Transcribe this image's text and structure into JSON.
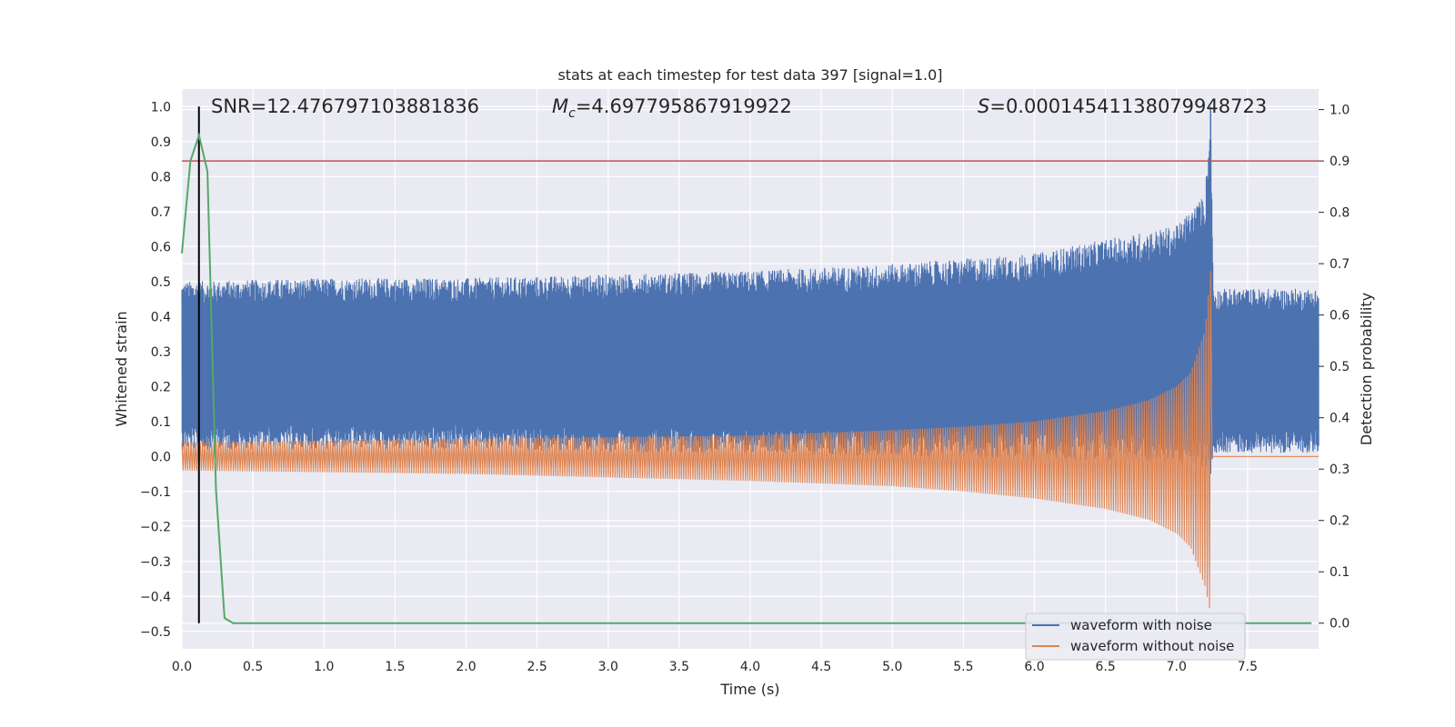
{
  "chart_data": {
    "type": "line",
    "title": "stats at each timestep for test data 397 [signal=1.0]",
    "xlabel": "Time (s)",
    "ylabel_left": "Whitened strain",
    "ylabel_right": "Detection probability",
    "xlim": [
      0,
      8
    ],
    "ylim_left": [
      -0.55,
      1.05
    ],
    "ylim_right": [
      -0.05,
      1.04
    ],
    "x_ticks": [
      "0.0",
      "0.5",
      "1.0",
      "1.5",
      "2.0",
      "2.5",
      "3.0",
      "3.5",
      "4.0",
      "4.5",
      "5.0",
      "5.5",
      "6.0",
      "6.5",
      "7.0",
      "7.5"
    ],
    "y_ticks_left": [
      "1.0",
      "0.9",
      "0.8",
      "0.7",
      "0.6",
      "0.5",
      "0.4",
      "0.3",
      "0.2",
      "0.1",
      "0.0",
      "−0.1",
      "−0.2",
      "−0.3",
      "−0.4",
      "−0.5"
    ],
    "y_ticks_right": [
      "1.0",
      "0.9",
      "0.8",
      "0.7",
      "0.6",
      "0.5",
      "0.4",
      "0.3",
      "0.2",
      "0.1",
      "0.0"
    ],
    "grid": true,
    "legend_position": "lower-right",
    "annotations": {
      "snr_text": "SNR=12.476797103881836",
      "mc_symbol": "M",
      "mc_sub": "c",
      "mc_value": "=4.697795867919922",
      "s_symbol": "S",
      "s_value": "=0.00014541138079948723"
    },
    "threshold": 0.9,
    "marker_time": 0.12,
    "merger_time": 7.24,
    "series": [
      {
        "name": "waveform with noise",
        "color": "#4c72b0",
        "envelope": {
          "time": [
            0.0,
            1.0,
            2.0,
            3.0,
            4.0,
            5.0,
            6.0,
            6.5,
            7.0,
            7.2,
            7.24,
            7.26,
            8.0
          ],
          "upper": [
            0.5,
            0.51,
            0.51,
            0.52,
            0.53,
            0.55,
            0.58,
            0.62,
            0.66,
            0.75,
            1.0,
            0.48,
            0.48
          ],
          "lower": [
            0.02,
            0.02,
            0.02,
            0.01,
            0.01,
            0.0,
            -0.01,
            -0.01,
            -0.02,
            -0.04,
            -0.05,
            0.01,
            0.01
          ]
        }
      },
      {
        "name": "waveform without noise",
        "color": "#dd8452",
        "envelope": {
          "time": [
            0.0,
            1.0,
            2.0,
            3.0,
            4.0,
            5.0,
            5.5,
            6.0,
            6.5,
            6.8,
            7.0,
            7.1,
            7.2,
            7.24,
            7.25,
            8.0
          ],
          "upper": [
            0.04,
            0.045,
            0.05,
            0.055,
            0.06,
            0.075,
            0.085,
            0.1,
            0.13,
            0.16,
            0.2,
            0.24,
            0.36,
            0.53,
            0.0,
            0.0
          ],
          "lower": [
            -0.04,
            -0.045,
            -0.05,
            -0.06,
            -0.07,
            -0.085,
            -0.1,
            -0.12,
            -0.15,
            -0.18,
            -0.22,
            -0.26,
            -0.37,
            -0.45,
            0.0,
            0.0
          ]
        }
      },
      {
        "name": "detection probability",
        "color": "#55a868",
        "axis": "right",
        "x": [
          0.0,
          0.06,
          0.12,
          0.18,
          0.24,
          0.3,
          0.36,
          0.5,
          1.0,
          2.0,
          3.0,
          4.0,
          5.0,
          6.0,
          7.0,
          7.5,
          7.95
        ],
        "y": [
          0.72,
          0.9,
          0.95,
          0.88,
          0.26,
          0.01,
          0.0,
          0.0,
          0.0,
          0.0,
          0.0,
          0.0,
          0.0,
          0.0,
          0.0,
          0.0,
          0.0
        ]
      }
    ],
    "colors": {
      "background": "#eaeaf2",
      "grid": "#ffffff",
      "threshold_line": "#c44e52",
      "marker_line": "#000000"
    }
  }
}
